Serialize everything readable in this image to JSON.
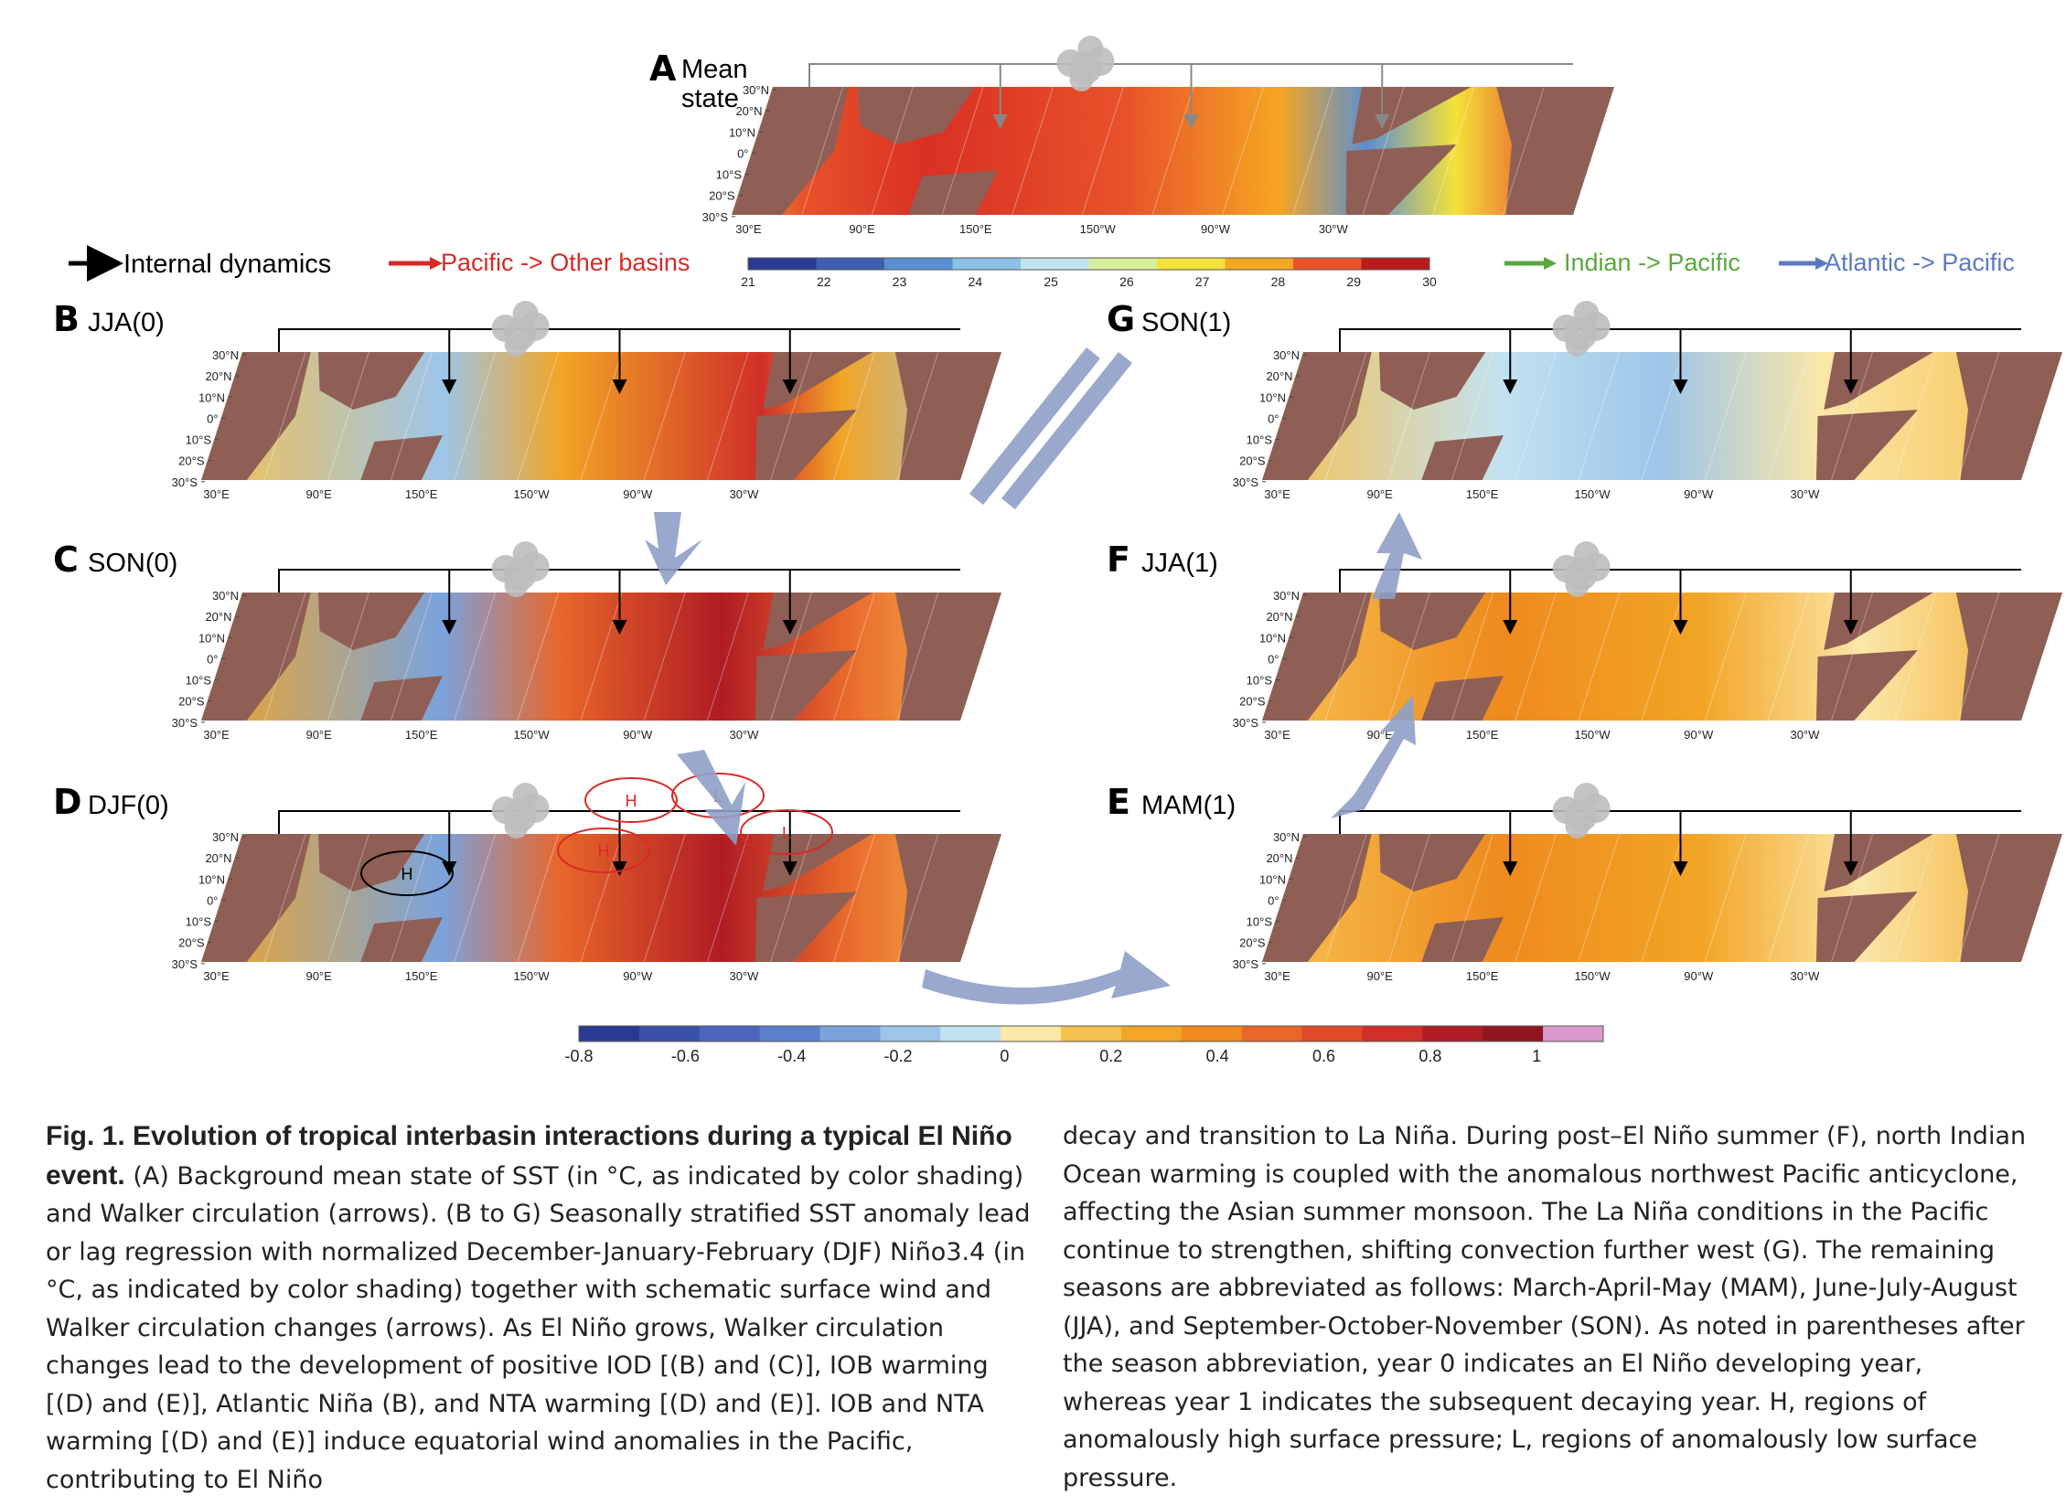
{
  "figure": {
    "panels": [
      {
        "id": "A",
        "label": "A",
        "season": "Mean\nstate",
        "season_lines": [
          "Mean",
          "state"
        ]
      },
      {
        "id": "B",
        "label": "B",
        "season": "JJA(0)"
      },
      {
        "id": "C",
        "label": "C",
        "season": "SON(0)"
      },
      {
        "id": "D",
        "label": "D",
        "season": "DJF(0)"
      },
      {
        "id": "E",
        "label": "E",
        "season": "MAM(1)"
      },
      {
        "id": "F",
        "label": "F",
        "season": "JJA(1)"
      },
      {
        "id": "G",
        "label": "G",
        "season": "SON(1)"
      }
    ],
    "lat_ticks": [
      "30°N",
      "20°N",
      "10°N",
      "0°",
      "10°S",
      "20°S",
      "30°S"
    ],
    "lon_ticks": [
      "30°E",
      "90°E",
      "150°E",
      "150°W",
      "90°W",
      "30°W"
    ],
    "legend": {
      "internal": {
        "label": "Internal dynamics",
        "color": "#000000"
      },
      "pacific_other": {
        "label": "Pacific -> Other basins",
        "color": "#d62b27"
      },
      "indian_pacific": {
        "label": "Indian -> Pacific",
        "color": "#5aa83d"
      },
      "atlantic_pacific": {
        "label": "Atlantic -> Pacific",
        "color": "#5b79c2"
      }
    },
    "pressure_labels": {
      "high": "H",
      "low": "L"
    },
    "mean_colorbar": {
      "ticks": [
        "21",
        "22",
        "23",
        "24",
        "25",
        "26",
        "27",
        "28",
        "29",
        "30"
      ],
      "colors": [
        "#2b3a8f",
        "#3f5fb0",
        "#5b8fd0",
        "#8cc1e6",
        "#bfe3ee",
        "#d9ee9a",
        "#f5e23a",
        "#f5a623",
        "#e8532a",
        "#b81c1c"
      ]
    },
    "anomaly_colorbar": {
      "ticks": [
        "-0.8",
        "-0.6",
        "-0.4",
        "-0.2",
        "0",
        "0.2",
        "0.4",
        "0.6",
        "0.8",
        "1"
      ],
      "colors": [
        "#2a3a93",
        "#3a4fa8",
        "#4a66bb",
        "#5c7fcb",
        "#7aa3dc",
        "#9dc5e9",
        "#c3e2f0",
        "#fbe7a8",
        "#f6c04f",
        "#f2a526",
        "#ee8a1e",
        "#e8662a",
        "#df4a28",
        "#d02f28",
        "#b01c24",
        "#8e1620",
        "#d99acb"
      ]
    },
    "colors": {
      "land": "#8f5f55",
      "land_grid": "#bfa39c"
    }
  },
  "caption": {
    "title": "Fig. 1. Evolution of tropical interbasin interactions during a typical El Niño event.",
    "left_text": "(A) Background mean state of SST (in °C, as indicated by color shading) and Walker circulation (arrows). (B to G) Seasonally stratified SST anomaly lead or lag regression with normalized December-January-February (DJF) Niño3.4 (in °C, as indicated by color shading) together with schematic surface wind and Walker circulation changes (arrows). As El Niño grows, Walker circulation changes lead to the development of positive IOD [(B) and (C)], IOB warming [(D) and (E)], Atlantic Niña (B), and NTA warming [(D) and (E)]. IOB and NTA warming [(D) and (E)] induce equatorial wind anomalies in the Pacific, contributing to El Niño",
    "right_text": "decay and transition to La Niña. During post–El Niño summer (F), north Indian Ocean warming is coupled with the anomalous northwest Pacific anticyclone, affecting the Asian summer monsoon. The La Niña conditions in the Pacific continue to strengthen, shifting convection further west (G). The remaining seasons are abbreviated as follows: March-April-May (MAM), June-July-August (JJA), and September-October-November (SON). As noted in parentheses after the season abbreviation, year 0 indicates an El Niño developing year, whereas year 1 indicates the subsequent decaying year. H, regions of anomalously high surface pressure; L, regions of anomalously low surface pressure."
  }
}
